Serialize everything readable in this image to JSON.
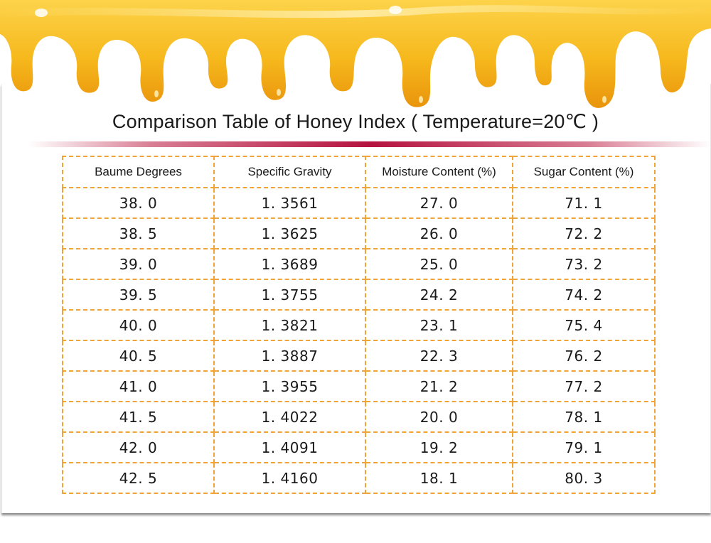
{
  "title": "Comparison Table of Honey Index ( Temperature=20℃ )",
  "colors": {
    "honey": "#f5b71a",
    "table_border": "#f0a437",
    "accent_rule": "#b5123f",
    "text": "#1a1a1a"
  },
  "table": {
    "headers": [
      "Baume Degrees",
      "Specific Gravity",
      "Moisture Content (%)",
      "Sugar Content (%)"
    ],
    "rows": [
      [
        "38. 0",
        "1. 3561",
        "27. 0",
        "71. 1"
      ],
      [
        "38. 5",
        "1. 3625",
        "26. 0",
        "72. 2"
      ],
      [
        "39. 0",
        "1. 3689",
        "25. 0",
        "73. 2"
      ],
      [
        "39. 5",
        "1. 3755",
        "24. 2",
        "74. 2"
      ],
      [
        "40. 0",
        "1. 3821",
        "23. 1",
        "75. 4"
      ],
      [
        "40. 5",
        "1. 3887",
        "22. 3",
        "76. 2"
      ],
      [
        "41. 0",
        "1. 3955",
        "21. 2",
        "77. 2"
      ],
      [
        "41. 5",
        "1. 4022",
        "20. 0",
        "78. 1"
      ],
      [
        "42. 0",
        "1. 4091",
        "19. 2",
        "79. 1"
      ],
      [
        "42. 5",
        "1. 4160",
        "18. 1",
        "80. 3"
      ]
    ]
  }
}
